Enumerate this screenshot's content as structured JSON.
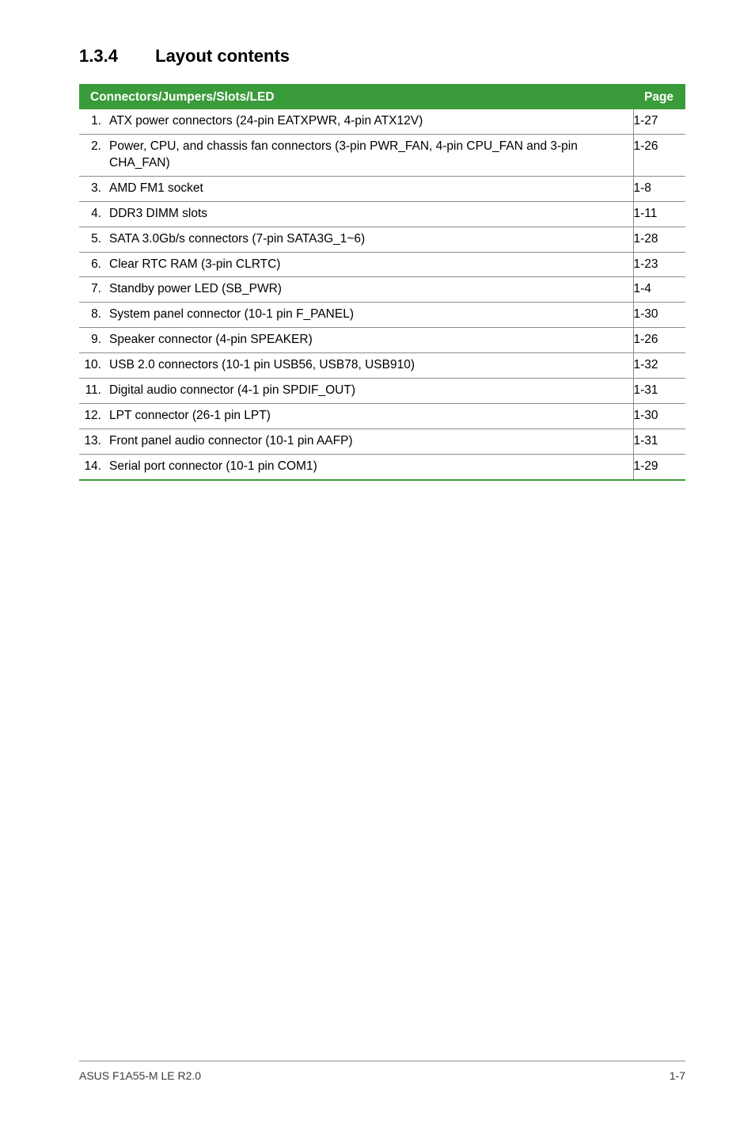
{
  "heading": {
    "number": "1.3.4",
    "title": "Layout contents"
  },
  "table": {
    "header": {
      "desc": "Connectors/Jumpers/Slots/LED",
      "page": "Page"
    },
    "header_bg": "#3a9b3a",
    "header_fg": "#ffffff",
    "rule_color": "#3a9b3a",
    "row_border": "#8a8a8a",
    "rows": [
      {
        "n": "1.",
        "desc": "ATX power connectors (24-pin EATXPWR, 4-pin ATX12V)",
        "page": "1-27"
      },
      {
        "n": "2.",
        "desc": "Power, CPU, and chassis fan connectors (3-pin PWR_FAN, 4-pin CPU_FAN and 3-pin CHA_FAN)",
        "page": "1-26"
      },
      {
        "n": "3.",
        "desc": "AMD FM1 socket",
        "page": "1-8"
      },
      {
        "n": "4.",
        "desc": "DDR3 DIMM slots",
        "page": "1-11"
      },
      {
        "n": "5.",
        "desc": "SATA 3.0Gb/s connectors (7-pin SATA3G_1~6)",
        "page": "1-28"
      },
      {
        "n": "6.",
        "desc": "Clear RTC RAM (3-pin CLRTC)",
        "page": "1-23"
      },
      {
        "n": "7.",
        "desc": "Standby power LED (SB_PWR)",
        "page": "1-4"
      },
      {
        "n": "8.",
        "desc": "System panel connector (10-1 pin F_PANEL)",
        "page": "1-30"
      },
      {
        "n": "9.",
        "desc": "Speaker connector (4-pin SPEAKER)",
        "page": "1-26"
      },
      {
        "n": "10.",
        "desc": "USB 2.0 connectors (10-1 pin USB56, USB78, USB910)",
        "page": "1-32"
      },
      {
        "n": "11.",
        "desc": "Digital audio connector (4-1 pin SPDIF_OUT)",
        "page": "1-31"
      },
      {
        "n": "12.",
        "desc": "LPT connector (26-1 pin LPT)",
        "page": "1-30"
      },
      {
        "n": "13.",
        "desc": "Front panel audio connector (10-1 pin AAFP)",
        "page": "1-31"
      },
      {
        "n": "14.",
        "desc": "Serial port connector (10-1 pin COM1)",
        "page": "1-29"
      }
    ]
  },
  "footer": {
    "left": "ASUS F1A55-M LE R2.0",
    "right": "1-7"
  }
}
